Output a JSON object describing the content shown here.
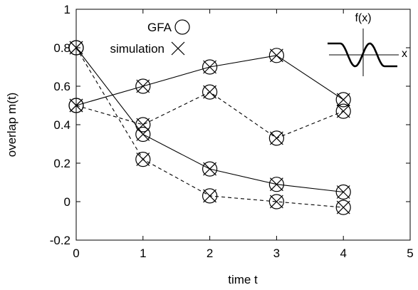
{
  "chart_data": {
    "type": "line",
    "xlabel": "time t",
    "ylabel": "overlap m(t)",
    "xlim": [
      0,
      5
    ],
    "ylim": [
      -0.2,
      1
    ],
    "xticks": [
      "0",
      "1",
      "2",
      "3",
      "4",
      "5"
    ],
    "yticks": [
      "-0.2",
      "0",
      "0.2",
      "0.4",
      "0.6",
      "0.8",
      "1"
    ],
    "grid": false,
    "legend_position": "top-center",
    "legend": [
      {
        "label": "GFA",
        "marker": "circle"
      },
      {
        "label": "simulation",
        "marker": "cross"
      }
    ],
    "series": [
      {
        "style": "solid",
        "x": [
          0,
          1,
          2,
          3,
          4
        ],
        "y": [
          0.5,
          0.6,
          0.7,
          0.76,
          0.53
        ]
      },
      {
        "style": "dashed",
        "x": [
          0,
          1,
          2,
          3,
          4
        ],
        "y": [
          0.5,
          0.4,
          0.57,
          0.33,
          0.47
        ]
      },
      {
        "style": "solid",
        "x": [
          0,
          1,
          2,
          3,
          4
        ],
        "y": [
          0.8,
          0.35,
          0.17,
          0.09,
          0.05
        ]
      },
      {
        "style": "dashed",
        "x": [
          0,
          1,
          2,
          3,
          4
        ],
        "y": [
          0.8,
          0.22,
          0.03,
          0.0,
          -0.03
        ]
      }
    ],
    "inset": {
      "ylabel": "f(x)",
      "xlabel": "x",
      "description_curve": "sigmoid-like oscillating function"
    }
  }
}
